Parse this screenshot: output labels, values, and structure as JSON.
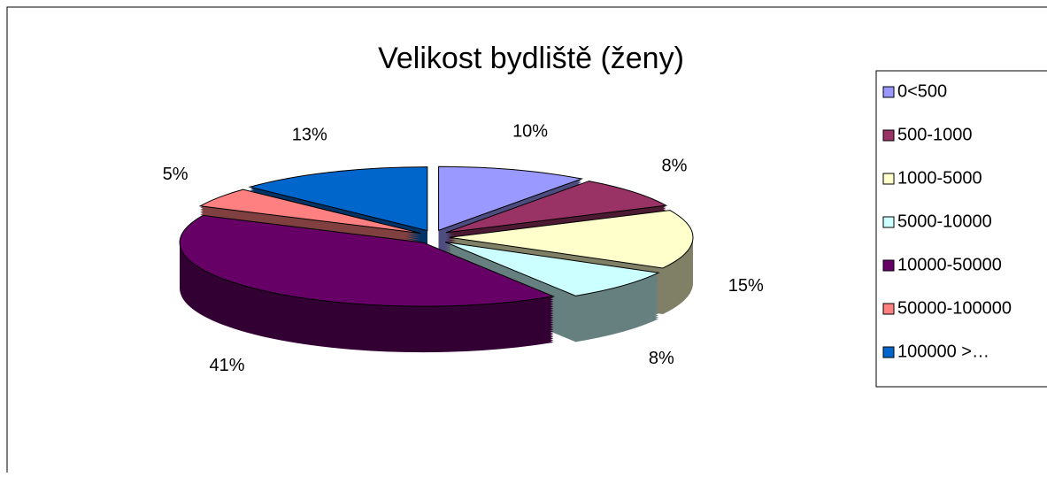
{
  "chart_data": {
    "type": "pie3d",
    "title": "Velikost bydliště (ženy)",
    "categories": [
      "0<500",
      "500-1000",
      "1000-5000",
      "5000-10000",
      "10000-50000",
      "50000-100000",
      "100000 >…"
    ],
    "values": [
      10,
      8,
      15,
      8,
      41,
      5,
      13
    ],
    "value_labels": [
      "10%",
      "8%",
      "15%",
      "8%",
      "41%",
      "5%",
      "13%"
    ],
    "colors": [
      "#9999ff",
      "#993366",
      "#ffffcc",
      "#ccffff",
      "#660066",
      "#ff8080",
      "#0066cc"
    ],
    "legend": "right"
  }
}
